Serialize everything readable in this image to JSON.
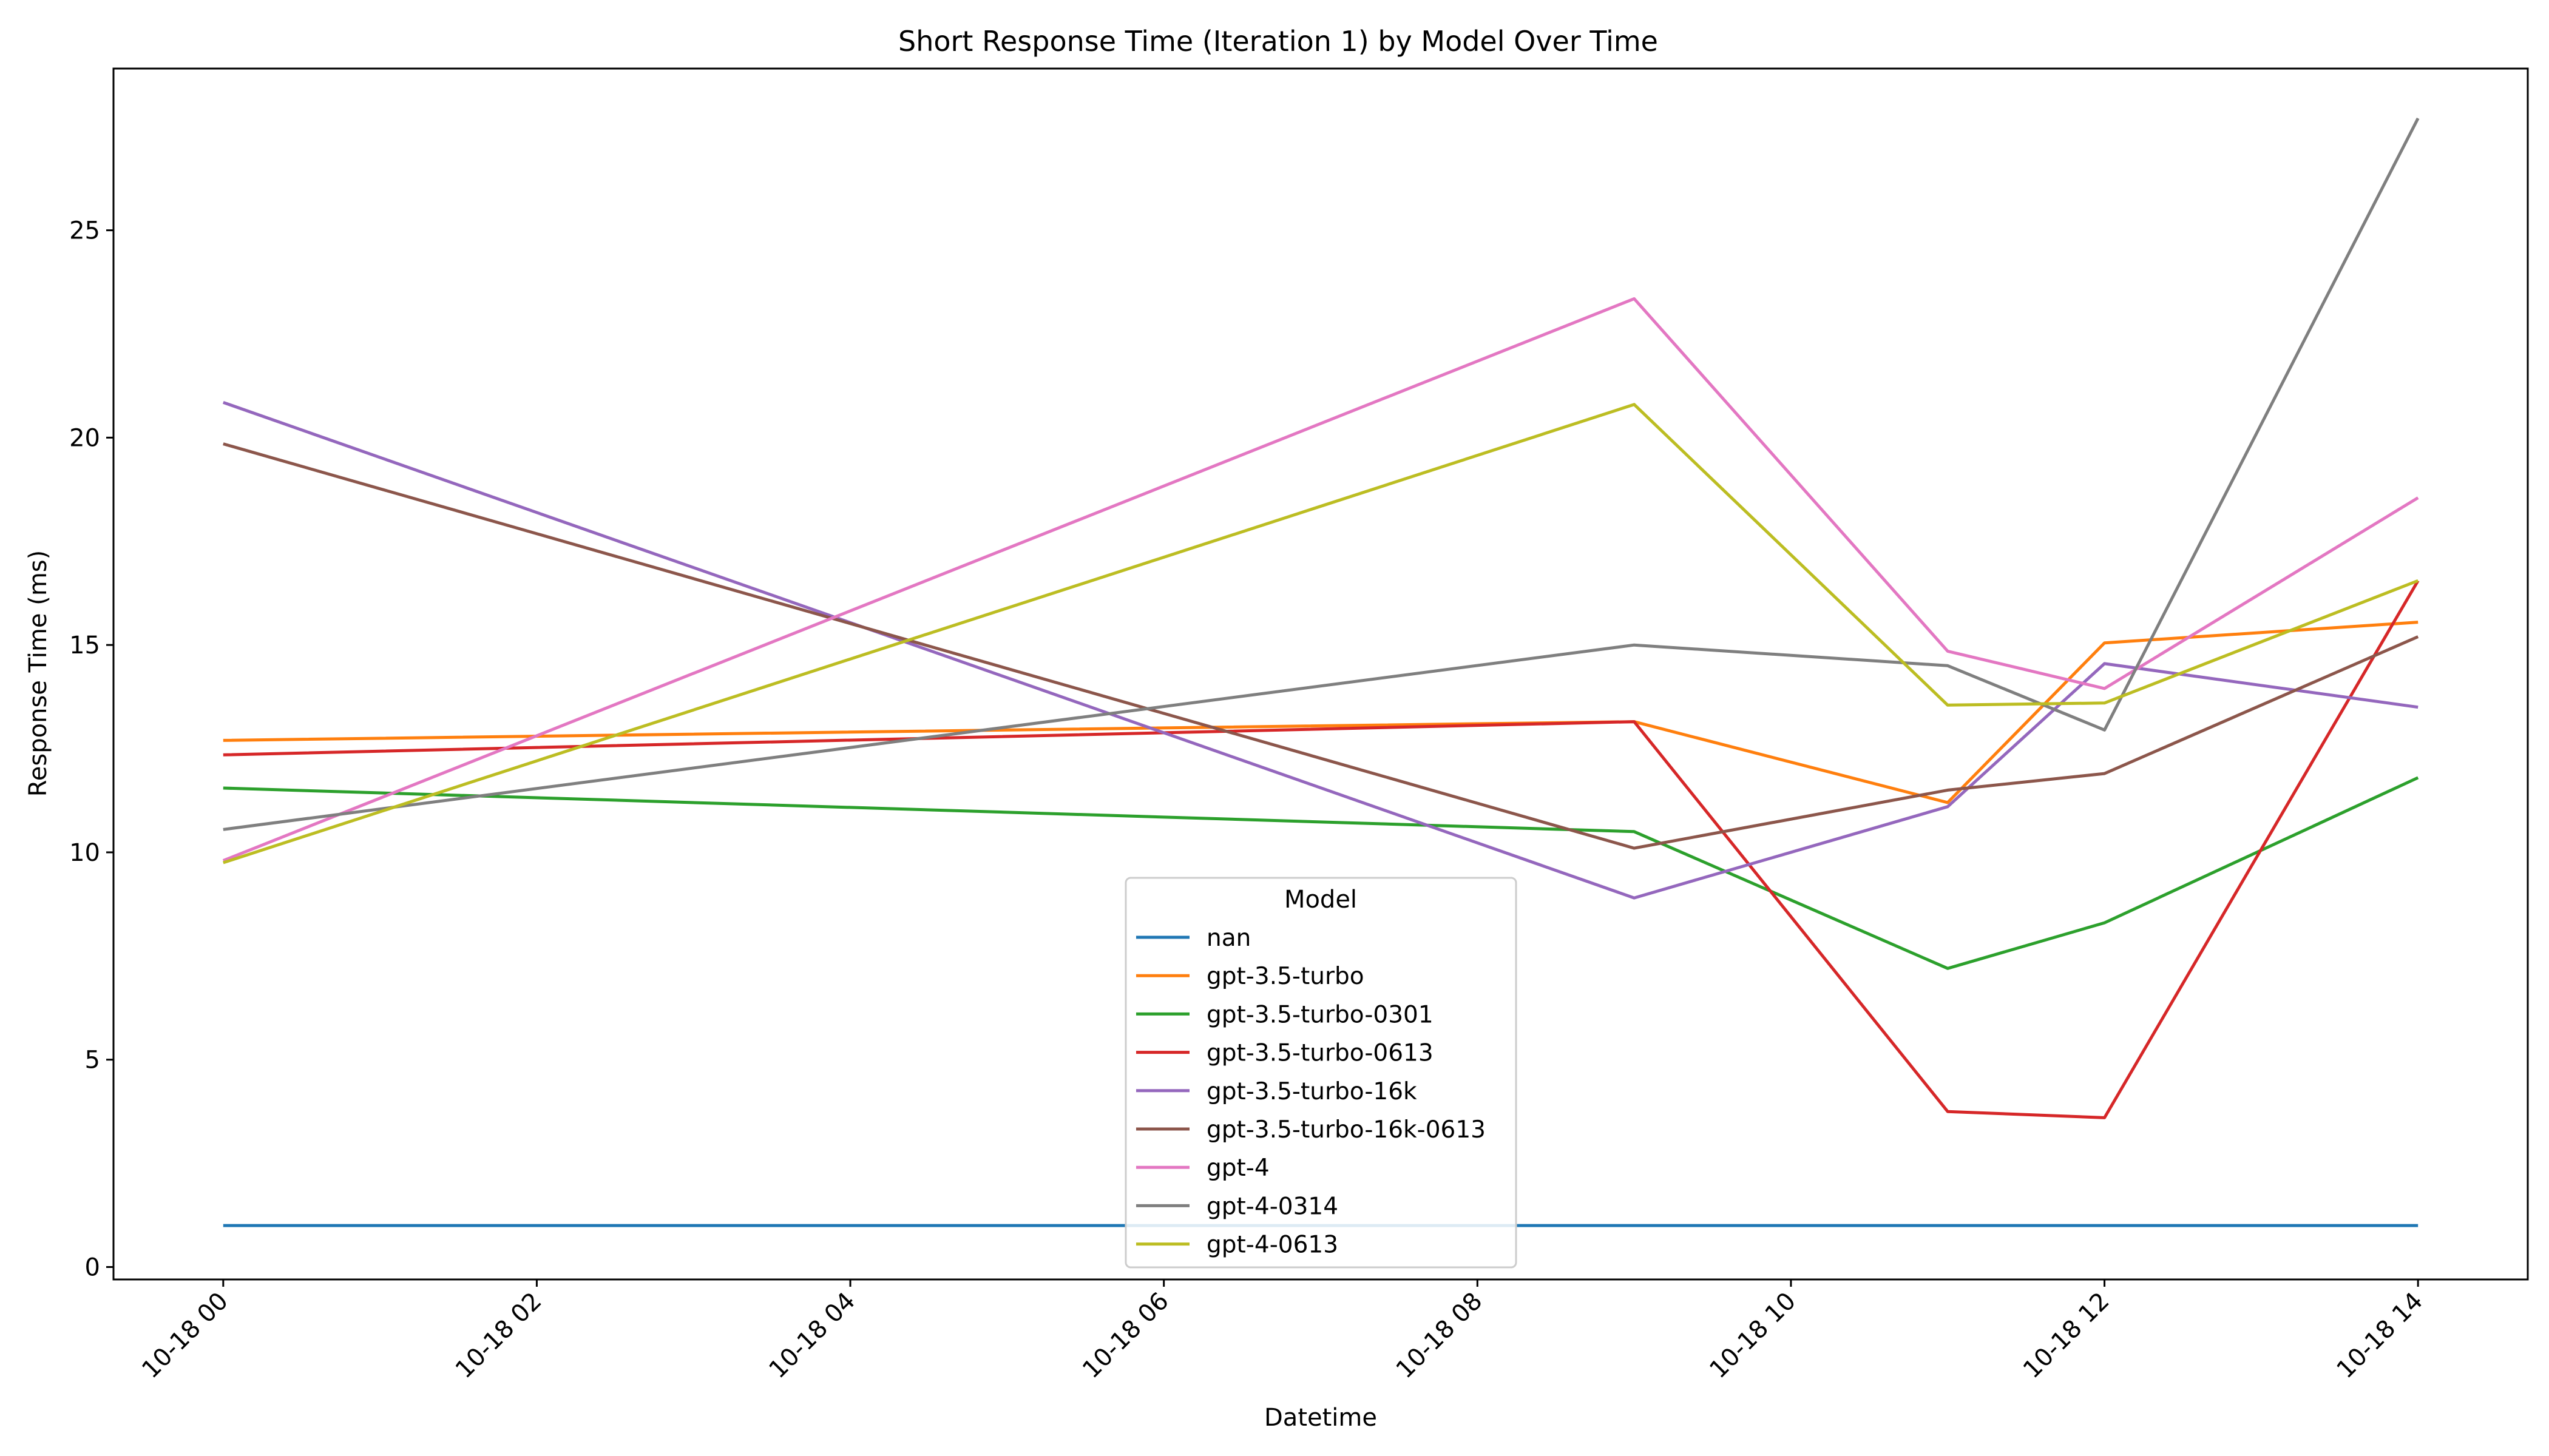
{
  "chart_data": {
    "type": "line",
    "title": "Short Response Time (Iteration 1) by Model Over Time",
    "xlabel": "Datetime",
    "ylabel": "Response Time (ms)",
    "xlim": [
      "2023-10-17T23:18",
      "2023-10-18T14:42"
    ],
    "ylim": [
      -0.3,
      28.9
    ],
    "x_ticks": [
      {
        "at": "2023-10-18T00:00",
        "label": "10-18 00"
      },
      {
        "at": "2023-10-18T02:00",
        "label": "10-18 02"
      },
      {
        "at": "2023-10-18T04:00",
        "label": "10-18 04"
      },
      {
        "at": "2023-10-18T06:00",
        "label": "10-18 06"
      },
      {
        "at": "2023-10-18T08:00",
        "label": "10-18 08"
      },
      {
        "at": "2023-10-18T10:00",
        "label": "10-18 10"
      },
      {
        "at": "2023-10-18T12:00",
        "label": "10-18 12"
      },
      {
        "at": "2023-10-18T14:00",
        "label": "10-18 14"
      }
    ],
    "y_ticks": [
      0,
      5,
      10,
      15,
      20,
      25
    ],
    "grid": false,
    "legend": {
      "title": "Model",
      "placement": "bottom-center"
    },
    "x": [
      "2023-10-18T00:00",
      "2023-10-18T09:00",
      "2023-10-18T11:00",
      "2023-10-18T12:00",
      "2023-10-18T14:00"
    ],
    "series": [
      {
        "name": "nan",
        "color": "#1f77b4",
        "values": [
          1.0,
          1.0,
          1.0,
          1.0,
          1.0
        ]
      },
      {
        "name": "gpt-3.5-turbo",
        "color": "#ff7f0e",
        "values": [
          12.7,
          13.15,
          11.2,
          15.05,
          15.55
        ]
      },
      {
        "name": "gpt-3.5-turbo-0301",
        "color": "#2ca02c",
        "values": [
          11.55,
          10.5,
          7.2,
          8.3,
          11.8
        ]
      },
      {
        "name": "gpt-3.5-turbo-0613",
        "color": "#d62728",
        "values": [
          12.35,
          13.15,
          3.75,
          3.6,
          16.55
        ]
      },
      {
        "name": "gpt-3.5-turbo-16k",
        "color": "#9467bd",
        "values": [
          20.85,
          8.9,
          11.1,
          14.55,
          13.5
        ]
      },
      {
        "name": "gpt-3.5-turbo-16k-0613",
        "color": "#8c564b",
        "values": [
          19.85,
          10.1,
          11.5,
          11.9,
          15.2
        ]
      },
      {
        "name": "gpt-4",
        "color": "#e377c2",
        "values": [
          9.8,
          23.35,
          14.85,
          13.95,
          18.55
        ]
      },
      {
        "name": "gpt-4-0314",
        "color": "#7f7f7f",
        "values": [
          10.55,
          15.0,
          14.5,
          12.95,
          27.7
        ]
      },
      {
        "name": "gpt-4-0613",
        "color": "#bcbd22",
        "values": [
          9.75,
          20.8,
          13.55,
          13.6,
          16.55
        ]
      }
    ]
  }
}
